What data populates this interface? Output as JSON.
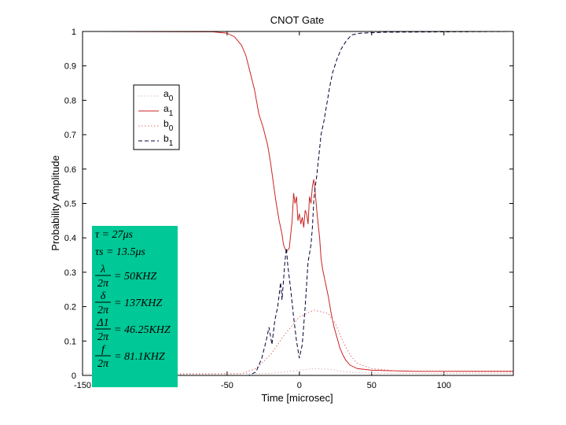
{
  "chart_data": {
    "type": "line",
    "title": "CNOT Gate",
    "xlabel": "Time [microsec]",
    "ylabel": "Probability Amplitude",
    "xlim": [
      -150,
      148
    ],
    "ylim": [
      0,
      1
    ],
    "xticks": [
      -150,
      -50,
      0,
      50,
      100
    ],
    "xtick_labels": [
      "-150",
      "-50",
      "0",
      "50",
      "100"
    ],
    "yticks": [
      0,
      0.1,
      0.2,
      0.3,
      0.4,
      0.5,
      0.6,
      0.7,
      0.8,
      0.9,
      1
    ],
    "ytick_labels": [
      "0",
      "0.1",
      "0.2",
      "0.3",
      "0.4",
      "0.5",
      "0.6",
      "0.7",
      "0.8",
      "0.9",
      "1"
    ],
    "grid": false,
    "legend_position": "upper-left",
    "series": [
      {
        "name": "a0",
        "label_main": "a",
        "label_sub": "0",
        "color": "#d9b3b3",
        "style": "dotted",
        "points": [
          [
            -150,
            0.005
          ],
          [
            -20,
            0.006
          ],
          [
            -10,
            0.01
          ],
          [
            0,
            0.015
          ],
          [
            10,
            0.02
          ],
          [
            20,
            0.018
          ],
          [
            30,
            0.012
          ],
          [
            40,
            0.008
          ],
          [
            60,
            0.006
          ],
          [
            148,
            0.006
          ]
        ]
      },
      {
        "name": "a1",
        "label_main": "a",
        "label_sub": "1",
        "color": "#cc2222",
        "style": "solid",
        "points": [
          [
            -150,
            1.0
          ],
          [
            -60,
            0.999
          ],
          [
            -50,
            0.995
          ],
          [
            -45,
            0.985
          ],
          [
            -40,
            0.96
          ],
          [
            -37,
            0.93
          ],
          [
            -34,
            0.88
          ],
          [
            -31,
            0.83
          ],
          [
            -28,
            0.76
          ],
          [
            -25,
            0.72
          ],
          [
            -22,
            0.67
          ],
          [
            -20,
            0.62
          ],
          [
            -18,
            0.56
          ],
          [
            -16,
            0.5
          ],
          [
            -14,
            0.45
          ],
          [
            -12,
            0.41
          ],
          [
            -11,
            0.38
          ],
          [
            -9,
            0.36
          ],
          [
            -7,
            0.37
          ],
          [
            -5,
            0.45
          ],
          [
            -4,
            0.53
          ],
          [
            -3,
            0.5
          ],
          [
            -2,
            0.52
          ],
          [
            -1,
            0.45
          ],
          [
            0,
            0.47
          ],
          [
            1,
            0.44
          ],
          [
            2,
            0.46
          ],
          [
            3,
            0.43
          ],
          [
            4,
            0.48
          ],
          [
            5,
            0.47
          ],
          [
            6,
            0.44
          ],
          [
            7,
            0.52
          ],
          [
            8,
            0.5
          ],
          [
            9,
            0.55
          ],
          [
            10,
            0.57
          ],
          [
            11,
            0.53
          ],
          [
            12,
            0.48
          ],
          [
            13,
            0.44
          ],
          [
            14,
            0.4
          ],
          [
            15,
            0.34
          ],
          [
            16,
            0.31
          ],
          [
            18,
            0.27
          ],
          [
            20,
            0.23
          ],
          [
            22,
            0.18
          ],
          [
            24,
            0.14
          ],
          [
            26,
            0.11
          ],
          [
            28,
            0.08
          ],
          [
            30,
            0.06
          ],
          [
            32,
            0.045
          ],
          [
            35,
            0.03
          ],
          [
            40,
            0.02
          ],
          [
            50,
            0.015
          ],
          [
            80,
            0.012
          ],
          [
            148,
            0.012
          ]
        ]
      },
      {
        "name": "b0",
        "label_main": "b",
        "label_sub": "0",
        "color": "#e07070",
        "style": "dotted",
        "points": [
          [
            -150,
            0.0
          ],
          [
            -40,
            0.005
          ],
          [
            -30,
            0.02
          ],
          [
            -20,
            0.06
          ],
          [
            -10,
            0.12
          ],
          [
            0,
            0.17
          ],
          [
            10,
            0.19
          ],
          [
            20,
            0.18
          ],
          [
            25,
            0.15
          ],
          [
            30,
            0.1
          ],
          [
            35,
            0.06
          ],
          [
            40,
            0.035
          ],
          [
            50,
            0.02
          ],
          [
            70,
            0.012
          ],
          [
            148,
            0.01
          ]
        ]
      },
      {
        "name": "b1",
        "label_main": "b",
        "label_sub": "1",
        "color": "#000033",
        "style": "dashed",
        "points": [
          [
            -150,
            0.0
          ],
          [
            -35,
            0.0
          ],
          [
            -30,
            0.01
          ],
          [
            -26,
            0.05
          ],
          [
            -23,
            0.1
          ],
          [
            -21,
            0.14
          ],
          [
            -19,
            0.09
          ],
          [
            -17,
            0.16
          ],
          [
            -15,
            0.2
          ],
          [
            -13,
            0.27
          ],
          [
            -12,
            0.22
          ],
          [
            -10,
            0.33
          ],
          [
            -9,
            0.37
          ],
          [
            -8,
            0.32
          ],
          [
            -6,
            0.25
          ],
          [
            -4,
            0.17
          ],
          [
            -2,
            0.1
          ],
          [
            0,
            0.05
          ],
          [
            2,
            0.09
          ],
          [
            4,
            0.2
          ],
          [
            6,
            0.33
          ],
          [
            8,
            0.38
          ],
          [
            9,
            0.43
          ],
          [
            10,
            0.51
          ],
          [
            11,
            0.55
          ],
          [
            12,
            0.58
          ],
          [
            13,
            0.62
          ],
          [
            14,
            0.66
          ],
          [
            15,
            0.7
          ],
          [
            17,
            0.74
          ],
          [
            19,
            0.79
          ],
          [
            21,
            0.84
          ],
          [
            23,
            0.88
          ],
          [
            26,
            0.92
          ],
          [
            29,
            0.95
          ],
          [
            32,
            0.97
          ],
          [
            36,
            0.99
          ],
          [
            42,
            0.995
          ],
          [
            60,
            0.998
          ],
          [
            148,
            1.0
          ]
        ]
      }
    ],
    "parameters": [
      {
        "lhs": "τ",
        "rhs": "= 27μs"
      },
      {
        "lhs": "τs",
        "rhs": "= 13.5μs"
      },
      {
        "num": "λ",
        "den": "2π",
        "rhs": "= 50KHZ"
      },
      {
        "num": "δ",
        "den": "2π",
        "rhs": "= 137KHZ"
      },
      {
        "num": "Δ1",
        "den": "2π",
        "rhs": "= 46.25KHZ"
      },
      {
        "num": "f",
        "den": "2π",
        "rhs": "= 81.1KHZ"
      }
    ],
    "parameter_box_color": "#00c896"
  }
}
